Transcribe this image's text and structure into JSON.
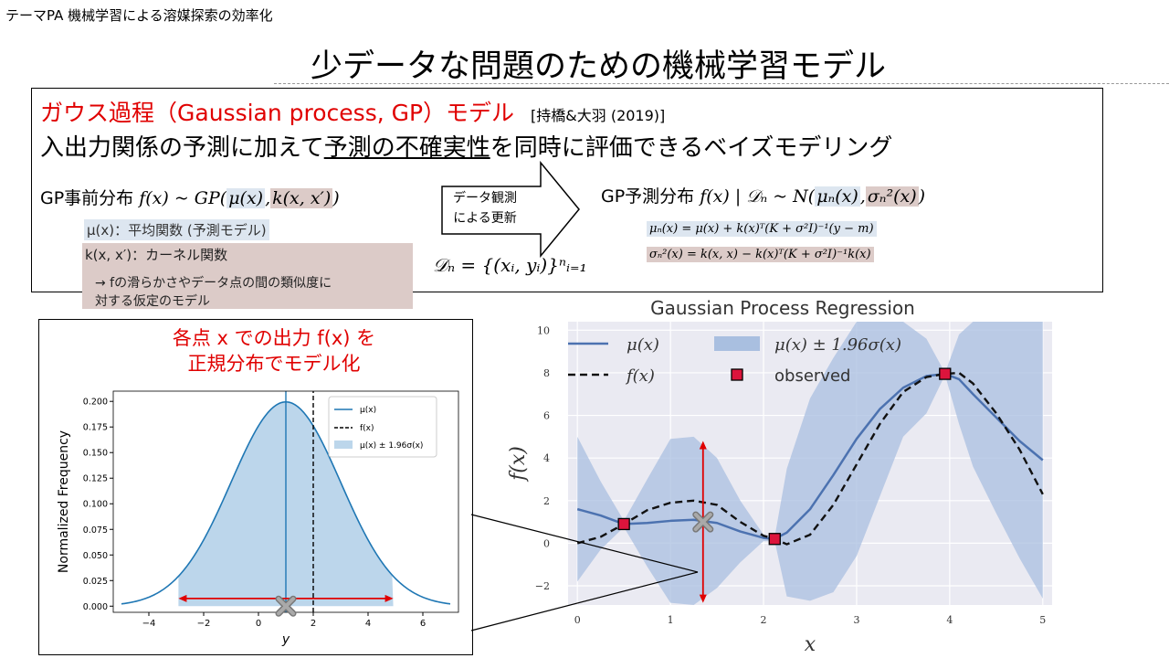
{
  "header": {
    "top_label": "テーマPA 機械学習による溶媒探索の効率化",
    "title": "少データな問題のための機械学習モデル"
  },
  "gp_box": {
    "heading_red": "ガウス過程（Gaussian process, GP）モデル",
    "reference": "[持橋&大羽 (2019)]",
    "subtitle_pre": "入出力関係の予測に加えて",
    "subtitle_underlined": "予測の不確実性",
    "subtitle_post": "を同時に評価できるベイズモデリング",
    "prior": {
      "label": "GP事前分布",
      "formula_pre": "f(x) ~ GP(",
      "formula_mean": "μ(x)",
      "formula_sep": ",",
      "formula_kernel": "k(x, x′)",
      "formula_post": ")",
      "mean_def": "μ(x)：平均関数 (予測モデル)",
      "kernel_def": "k(x, x′)：カーネル関数",
      "kernel_note_1": "→ fの滑らかさやデータ点の間の類似度に",
      "kernel_note_2": "対する仮定のモデル"
    },
    "update_arrow": {
      "line1": "データ観測",
      "line2": "による更新"
    },
    "dn_def": "𝒟ₙ = {(xᵢ, yᵢ)}ⁿᵢ₌₁",
    "posterior": {
      "label": "GP予測分布",
      "formula_pre": "f(x) | 𝒟ₙ ~ N(",
      "formula_mean": "μₙ(x)",
      "formula_sep": ",",
      "formula_var": "σₙ²(x)",
      "formula_post": ")",
      "mu_n": "μₙ(x) = μ(x) + k(x)ᵀ(K + σ²I)⁻¹(y − m)",
      "sigma_n": "σₙ²(x) = k(x, x) − k(x)ᵀ(K + σ²I)⁻¹k(x)"
    }
  },
  "inset": {
    "caption_1": "各点 x での出力 f(x) を",
    "caption_2": "正規分布でモデル化"
  },
  "colors": {
    "accent_red": "#e00000",
    "gp_line": "#4c72b0",
    "band": "#a9bfe0",
    "inset_curve": "#1f77b4",
    "inset_fill": "#bcd6eb",
    "obs_marker": "#dc143c"
  },
  "chart_data": [
    {
      "type": "area",
      "title": "",
      "xlabel": "y",
      "ylabel": "Normalized Frequency",
      "xlim": [
        -5.3,
        7.3
      ],
      "ylim": [
        -0.006,
        0.21
      ],
      "xticks": [
        -4,
        -2,
        0,
        2,
        4,
        6
      ],
      "yticks": [
        0.0,
        0.025,
        0.05,
        0.075,
        0.1,
        0.125,
        0.15,
        0.175,
        0.2
      ],
      "ytick_labels": [
        "0.000",
        "0.025",
        "0.050",
        "0.075",
        "0.100",
        "0.125",
        "0.150",
        "0.175",
        "0.200"
      ],
      "series": [
        {
          "name": "μ(x)",
          "kind": "vline",
          "x": 1.0
        },
        {
          "name": "f(x)",
          "kind": "vline-dashed",
          "x": 2.0
        },
        {
          "name": "μ(x) ± 1.96σ(x)",
          "kind": "band",
          "x_range": [
            -2.92,
            4.92
          ]
        }
      ],
      "gaussian": {
        "mean": 1.0,
        "sd": 2.0,
        "x_range": [
          -5,
          7
        ]
      },
      "annotations": {
        "sample_marker_x": 1.0,
        "arrow_range": [
          -2.92,
          4.92
        ]
      }
    },
    {
      "type": "line",
      "title": "Gaussian Process Regression",
      "xlabel": "x",
      "ylabel": "f(x)",
      "xlim": [
        -0.1,
        5.1
      ],
      "ylim": [
        -2.9,
        10.4
      ],
      "xticks": [
        0,
        1,
        2,
        3,
        4,
        5
      ],
      "yticks": [
        -2,
        0,
        2,
        4,
        6,
        8,
        10
      ],
      "legend": [
        "μ(x)",
        "μ(x) ± 1.96σ(x)",
        "f(x)",
        "observed"
      ],
      "x": [
        0,
        0.25,
        0.5,
        0.75,
        1.0,
        1.25,
        1.5,
        1.75,
        2.0,
        2.12,
        2.25,
        2.5,
        2.75,
        3.0,
        3.25,
        3.5,
        3.75,
        3.95,
        4.1,
        4.25,
        4.5,
        4.75,
        5.0
      ],
      "series": [
        {
          "name": "μ(x)",
          "values": [
            1.6,
            1.3,
            0.9,
            0.95,
            1.05,
            1.1,
            0.95,
            0.55,
            0.25,
            0.2,
            0.5,
            1.6,
            3.2,
            4.9,
            6.3,
            7.3,
            7.85,
            7.95,
            7.7,
            7.0,
            5.9,
            4.8,
            3.9
          ]
        },
        {
          "name": "f(x)",
          "values": [
            0.0,
            0.3,
            0.9,
            1.55,
            1.9,
            2.0,
            1.8,
            1.0,
            0.35,
            0.2,
            -0.05,
            0.4,
            1.8,
            3.7,
            5.6,
            7.1,
            7.8,
            7.95,
            8.0,
            7.5,
            6.1,
            4.4,
            2.3
          ]
        },
        {
          "name": "upper",
          "values": [
            5.0,
            2.9,
            1.05,
            3.0,
            4.9,
            5.0,
            4.0,
            2.0,
            0.4,
            0.3,
            3.5,
            6.8,
            8.7,
            10.4,
            10.4,
            10.4,
            9.6,
            8.0,
            9.8,
            10.4,
            10.4,
            10.4,
            10.4
          ]
        },
        {
          "name": "lower",
          "values": [
            -1.8,
            -0.3,
            0.75,
            -1.1,
            -2.8,
            -2.9,
            -2.1,
            -0.9,
            0.1,
            0.1,
            -2.5,
            -2.7,
            -2.3,
            -0.6,
            2.2,
            5.0,
            6.1,
            7.9,
            5.6,
            3.6,
            1.4,
            -0.7,
            -2.6
          ]
        },
        {
          "name": "observed",
          "points": [
            [
              0.5,
              0.9
            ],
            [
              2.12,
              0.2
            ],
            [
              3.95,
              7.95
            ]
          ]
        }
      ],
      "annotations": {
        "sample_x": 1.35,
        "sample_y": 1.0,
        "interval": [
          -2.8,
          4.8
        ]
      }
    }
  ]
}
